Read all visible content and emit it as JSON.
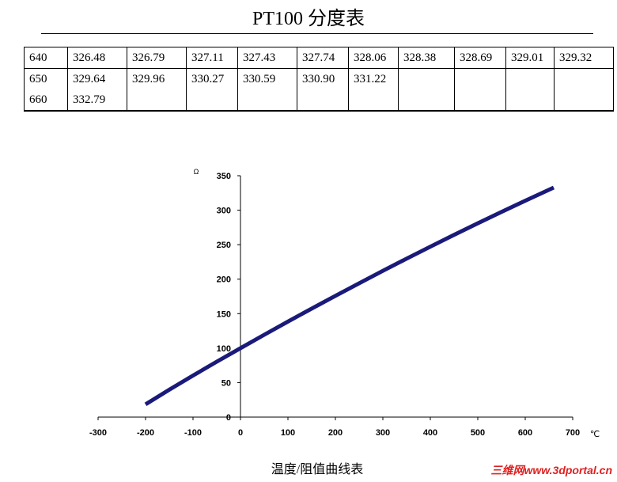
{
  "title": "PT100 分度表",
  "table": {
    "rows": [
      [
        "640",
        "326.48",
        "326.79",
        "327.11",
        "327.43",
        "327.74",
        "328.06",
        "328.38",
        "328.69",
        "329.01",
        "329.32"
      ],
      [
        "650",
        "329.64",
        "329.96",
        "330.27",
        "330.59",
        "330.90",
        "331.22",
        "",
        "",
        "",
        ""
      ],
      [
        "660",
        "332.79",
        "",
        "",
        "",
        "",
        "",
        "",
        "",
        "",
        ""
      ]
    ]
  },
  "chart_data": {
    "type": "line",
    "title": "",
    "caption": "温度/阻值曲线表",
    "xlabel": "℃",
    "ylabel": "Ω",
    "xlim": [
      -300,
      700
    ],
    "ylim": [
      0,
      350
    ],
    "xticks": [
      -300,
      -200,
      -100,
      0,
      100,
      200,
      300,
      400,
      500,
      600,
      700
    ],
    "yticks": [
      0,
      50,
      100,
      150,
      200,
      250,
      300,
      350
    ],
    "series": [
      {
        "name": "PT100",
        "color": "#1a1a7a",
        "x": [
          -200,
          -150,
          -100,
          -50,
          0,
          50,
          100,
          150,
          200,
          250,
          300,
          350,
          400,
          450,
          500,
          550,
          600,
          660
        ],
        "y": [
          18.52,
          39.72,
          60.26,
          80.31,
          100.0,
          119.4,
          138.51,
          157.33,
          175.86,
          194.1,
          212.05,
          229.72,
          247.09,
          264.18,
          280.98,
          297.49,
          313.71,
          332.79
        ]
      }
    ]
  },
  "watermark": "三维网www.3dportal.cn"
}
